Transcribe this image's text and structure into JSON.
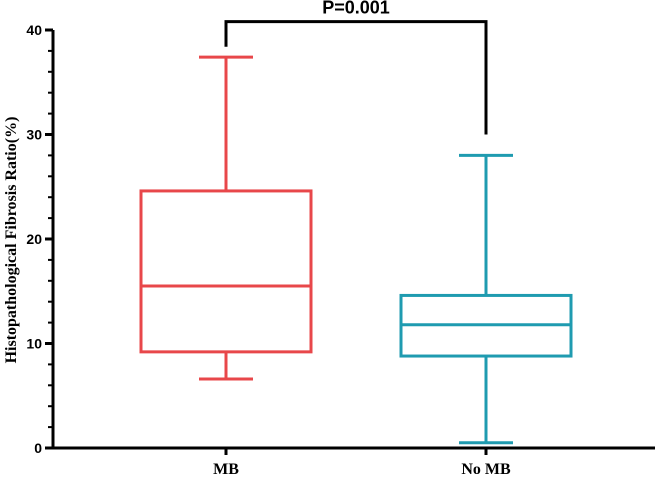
{
  "chart_data": {
    "type": "box",
    "ylabel": "Histopathological Fibrosis Ratio(%)",
    "xlabel": "",
    "ylim": [
      0,
      40
    ],
    "yticks": [
      "0",
      "10",
      "20",
      "30",
      "40"
    ],
    "categories": [
      "MB",
      "No MB"
    ],
    "boxes": [
      {
        "category": "MB",
        "min": 6.6,
        "q1": 9.2,
        "median": 15.5,
        "q3": 24.6,
        "max": 37.4,
        "color": "#e8474a"
      },
      {
        "category": "No MB",
        "min": 0.5,
        "q1": 8.8,
        "median": 11.8,
        "q3": 14.6,
        "max": 28.0,
        "color": "#1f9bb0"
      }
    ],
    "significance": {
      "label": "P=0.001",
      "from": "MB",
      "to": "No MB",
      "left_y": 38.4,
      "right_y": 30.0,
      "top_y": 40.8
    },
    "grid": false,
    "legend": "none"
  }
}
